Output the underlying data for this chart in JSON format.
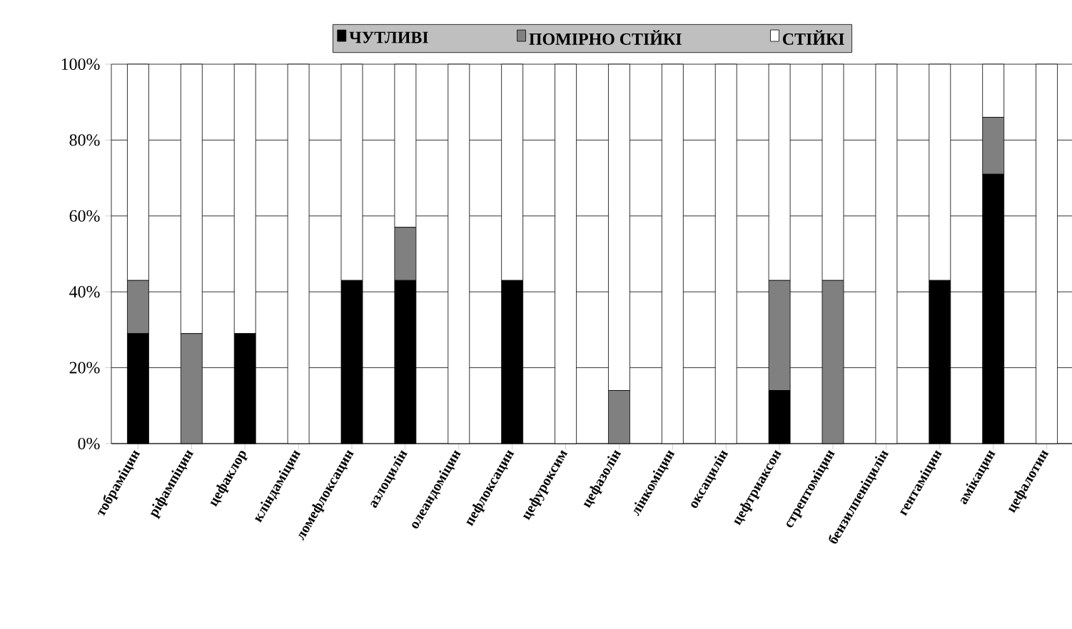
{
  "chart_data": {
    "type": "bar",
    "stacked": true,
    "categories": [
      "тобраміцин",
      "ріфампіцин",
      "цефаклор",
      "кліндаміцин",
      "ломефлоксацин",
      "азлоцилін",
      "олеандоміцин",
      "пефлоксацин",
      "цефуроксим",
      "цефазолін",
      "лінкоміцин",
      "оксацилін",
      "цефтриаксон",
      "стрептоміцин",
      "бензилпеніцилін",
      "гентаміцин",
      "амікацин",
      "цефалотин"
    ],
    "series": [
      {
        "name": "ЧУТЛИВІ",
        "color": "#000000",
        "values": [
          29,
          0,
          29,
          0,
          43,
          43,
          0,
          43,
          0,
          0,
          0,
          0,
          14,
          0,
          0,
          43,
          71,
          0
        ]
      },
      {
        "name": "ПОМІРНО СТІЙКІ",
        "color": "#808080",
        "values": [
          14,
          29,
          0,
          0,
          0,
          14,
          0,
          0,
          0,
          14,
          0,
          0,
          29,
          43,
          0,
          0,
          15,
          0
        ]
      },
      {
        "name": "СТІЙКІ",
        "color": "#ffffff",
        "values": [
          57,
          71,
          71,
          100,
          57,
          43,
          100,
          57,
          100,
          86,
          100,
          100,
          57,
          57,
          100,
          57,
          14,
          100
        ]
      }
    ],
    "ylim": [
      0,
      100
    ],
    "yticks": [
      {
        "value": 0,
        "label": "0%"
      },
      {
        "value": 20,
        "label": "20%"
      },
      {
        "value": 40,
        "label": "40%"
      },
      {
        "value": 60,
        "label": "60%"
      },
      {
        "value": 80,
        "label": "80%"
      },
      {
        "value": 100,
        "label": "100%"
      }
    ],
    "grid": "y",
    "legend": "top"
  }
}
